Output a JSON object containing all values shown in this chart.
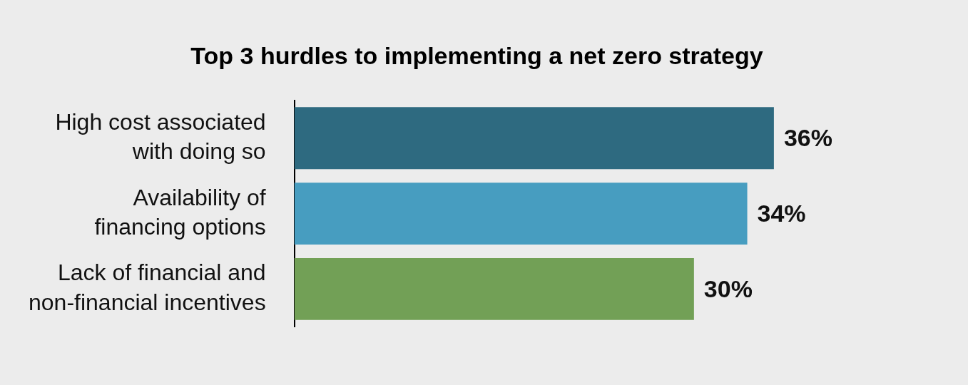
{
  "chart_data": {
    "type": "bar",
    "orientation": "horizontal",
    "title": "Top 3 hurdles to implementing a net zero strategy",
    "categories": [
      "High cost associated with doing so",
      "Availability of financing options",
      "Lack of financial and non-financial incentives"
    ],
    "values": [
      36,
      34,
      30
    ],
    "colors": [
      "#2e6a80",
      "#479dc0",
      "#72a056"
    ],
    "value_labels": [
      "36%",
      "34%",
      "30%"
    ]
  }
}
